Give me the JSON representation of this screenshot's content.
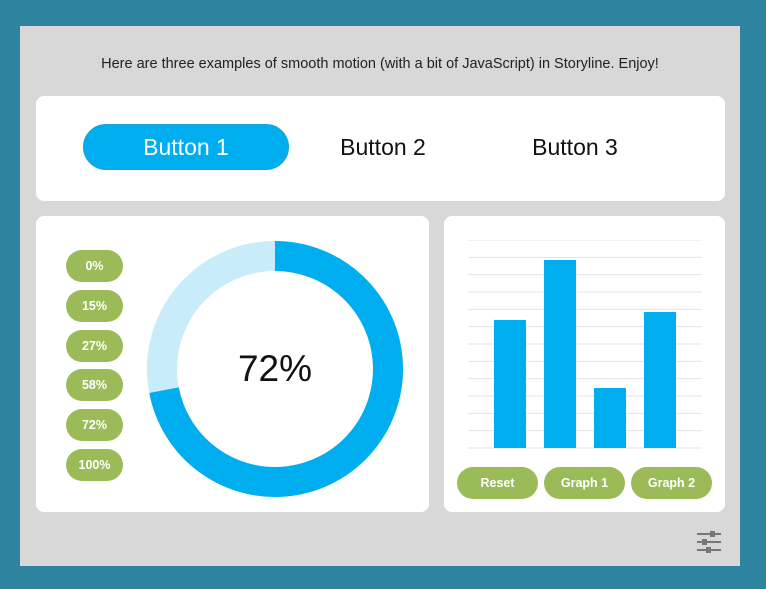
{
  "intro_text": "Here are three examples of smooth motion (with a bit of JavaScript) in Storyline. Enjoy!",
  "tabs": [
    {
      "label": "Button 1",
      "active": true
    },
    {
      "label": "Button 2",
      "active": false
    },
    {
      "label": "Button 3",
      "active": false
    }
  ],
  "donut": {
    "percent_buttons": [
      "0%",
      "15%",
      "27%",
      "58%",
      "72%",
      "100%"
    ],
    "value_label": "72%",
    "value": 72
  },
  "bar_graph": {
    "buttons": [
      "Reset",
      "Graph 1",
      "Graph 2"
    ]
  },
  "chart_data": {
    "type": "bar",
    "categories": [
      "",
      "",
      "",
      ""
    ],
    "values": [
      64,
      94,
      30,
      68
    ],
    "ylim": [
      0,
      104
    ],
    "grid": true
  },
  "colors": {
    "accent": "#00aeef",
    "accent_light": "#c8ecfa",
    "button_green": "#9bbb59",
    "frame": "#2e839e",
    "slide": "#d8d8d8"
  },
  "icons": {
    "settings": "sliders-icon"
  }
}
